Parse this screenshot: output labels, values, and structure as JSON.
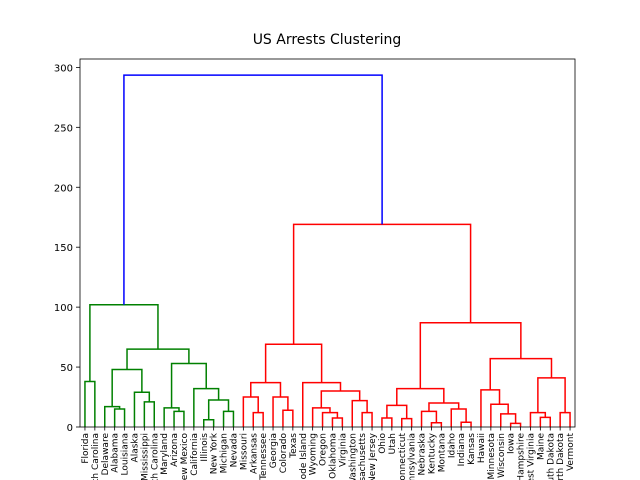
{
  "chart_data": {
    "type": "dendrogram",
    "title": "US Arrests Clustering",
    "leaves": [
      "Florida",
      "North Carolina",
      "Delaware",
      "Alabama",
      "Louisiana",
      "Alaska",
      "Mississippi",
      "South Carolina",
      "Maryland",
      "Arizona",
      "New Mexico",
      "California",
      "Illinois",
      "New York",
      "Michigan",
      "Nevada",
      "Missouri",
      "Arkansas",
      "Tennessee",
      "Georgia",
      "Colorado",
      "Texas",
      "Rhode Island",
      "Wyoming",
      "Oregon",
      "Oklahoma",
      "Virginia",
      "Washington",
      "Massachusetts",
      "New Jersey",
      "Ohio",
      "Utah",
      "Connecticut",
      "Pennsylvania",
      "Nebraska",
      "Kentucky",
      "Montana",
      "Idaho",
      "Indiana",
      "Kansas",
      "Hawaii",
      "Minnesota",
      "Wisconsin",
      "Iowa",
      "New Hampshire",
      "West Virginia",
      "Maine",
      "South Dakota",
      "North Dakota",
      "Vermont"
    ],
    "xlim": [
      0,
      500
    ],
    "ylim": [
      0,
      307
    ],
    "yticks": [
      0,
      50,
      100,
      150,
      200,
      250,
      300
    ],
    "links": [
      {
        "icoord": [
          5,
          5,
          15,
          15
        ],
        "dcoord": [
          0,
          38,
          38,
          0
        ],
        "color": "#008000"
      },
      {
        "icoord": [
          35,
          35,
          45,
          45
        ],
        "dcoord": [
          0,
          15,
          15,
          0
        ],
        "color": "#008000"
      },
      {
        "icoord": [
          25,
          25,
          40,
          40
        ],
        "dcoord": [
          0,
          17,
          17,
          15
        ],
        "color": "#008000"
      },
      {
        "icoord": [
          65,
          65,
          75,
          75
        ],
        "dcoord": [
          0,
          21,
          21,
          0
        ],
        "color": "#008000"
      },
      {
        "icoord": [
          55,
          55,
          70,
          70
        ],
        "dcoord": [
          0,
          29,
          29,
          21
        ],
        "color": "#008000"
      },
      {
        "icoord": [
          32.5,
          32.5,
          62.5,
          62.5
        ],
        "dcoord": [
          17,
          48,
          48,
          29
        ],
        "color": "#008000"
      },
      {
        "icoord": [
          95,
          95,
          105,
          105
        ],
        "dcoord": [
          0,
          13,
          13,
          0
        ],
        "color": "#008000"
      },
      {
        "icoord": [
          85,
          85,
          100,
          100
        ],
        "dcoord": [
          0,
          16,
          16,
          13
        ],
        "color": "#008000"
      },
      {
        "icoord": [
          125,
          125,
          135,
          135
        ],
        "dcoord": [
          0,
          6,
          6,
          0
        ],
        "color": "#008000"
      },
      {
        "icoord": [
          145,
          145,
          155,
          155
        ],
        "dcoord": [
          0,
          13,
          13,
          0
        ],
        "color": "#008000"
      },
      {
        "icoord": [
          130,
          130,
          150,
          150
        ],
        "dcoord": [
          6,
          22.5,
          22.5,
          13
        ],
        "color": "#008000"
      },
      {
        "icoord": [
          115,
          115,
          140,
          140
        ],
        "dcoord": [
          0,
          32,
          32,
          22.5
        ],
        "color": "#008000"
      },
      {
        "icoord": [
          92.5,
          92.5,
          127.5,
          127.5
        ],
        "dcoord": [
          16,
          53,
          53,
          32
        ],
        "color": "#008000"
      },
      {
        "icoord": [
          47.5,
          47.5,
          110,
          110
        ],
        "dcoord": [
          48,
          65,
          65,
          53
        ],
        "color": "#008000"
      },
      {
        "icoord": [
          10,
          10,
          78.75,
          78.75
        ],
        "dcoord": [
          38,
          102,
          102,
          65
        ],
        "color": "#008000"
      },
      {
        "icoord": [
          175,
          175,
          185,
          185
        ],
        "dcoord": [
          0,
          12,
          12,
          0
        ],
        "color": "#ff0000"
      },
      {
        "icoord": [
          165,
          165,
          180,
          180
        ],
        "dcoord": [
          0,
          25,
          25,
          12
        ],
        "color": "#ff0000"
      },
      {
        "icoord": [
          205,
          205,
          215,
          215
        ],
        "dcoord": [
          0,
          14,
          14,
          0
        ],
        "color": "#ff0000"
      },
      {
        "icoord": [
          195,
          195,
          210,
          210
        ],
        "dcoord": [
          0,
          25,
          25,
          14
        ],
        "color": "#ff0000"
      },
      {
        "icoord": [
          172.5,
          172.5,
          202.5,
          202.5
        ],
        "dcoord": [
          25,
          37,
          37,
          25
        ],
        "color": "#ff0000"
      },
      {
        "icoord": [
          255,
          255,
          265,
          265
        ],
        "dcoord": [
          0,
          7.5,
          7.5,
          0
        ],
        "color": "#ff0000"
      },
      {
        "icoord": [
          245,
          245,
          260,
          260
        ],
        "dcoord": [
          0,
          12,
          12,
          7.5
        ],
        "color": "#ff0000"
      },
      {
        "icoord": [
          235,
          235,
          252.5,
          252.5
        ],
        "dcoord": [
          0,
          16,
          16,
          12
        ],
        "color": "#ff0000"
      },
      {
        "icoord": [
          285,
          285,
          295,
          295
        ],
        "dcoord": [
          0,
          12,
          12,
          0
        ],
        "color": "#ff0000"
      },
      {
        "icoord": [
          275,
          275,
          290,
          290
        ],
        "dcoord": [
          0,
          22,
          22,
          12
        ],
        "color": "#ff0000"
      },
      {
        "icoord": [
          243.75,
          243.75,
          282.5,
          282.5
        ],
        "dcoord": [
          16,
          30,
          30,
          22
        ],
        "color": "#ff0000"
      },
      {
        "icoord": [
          225,
          225,
          263.125,
          263.125
        ],
        "dcoord": [
          0,
          37,
          37,
          30
        ],
        "color": "#ff0000"
      },
      {
        "icoord": [
          187.5,
          187.5,
          244.0625,
          244.0625
        ],
        "dcoord": [
          37,
          69,
          69,
          37
        ],
        "color": "#ff0000"
      },
      {
        "icoord": [
          305,
          305,
          315,
          315
        ],
        "dcoord": [
          0,
          7.5,
          7.5,
          0
        ],
        "color": "#ff0000"
      },
      {
        "icoord": [
          325,
          325,
          335,
          335
        ],
        "dcoord": [
          0,
          7,
          7,
          0
        ],
        "color": "#ff0000"
      },
      {
        "icoord": [
          310,
          310,
          330,
          330
        ],
        "dcoord": [
          7.5,
          18,
          18,
          7
        ],
        "color": "#ff0000"
      },
      {
        "icoord": [
          355,
          355,
          365,
          365
        ],
        "dcoord": [
          0,
          3.5,
          3.5,
          0
        ],
        "color": "#ff0000"
      },
      {
        "icoord": [
          345,
          345,
          360,
          360
        ],
        "dcoord": [
          0,
          13,
          13,
          3.5
        ],
        "color": "#ff0000"
      },
      {
        "icoord": [
          385,
          385,
          395,
          395
        ],
        "dcoord": [
          0,
          4,
          4,
          0
        ],
        "color": "#ff0000"
      },
      {
        "icoord": [
          375,
          375,
          390,
          390
        ],
        "dcoord": [
          0,
          15,
          15,
          4
        ],
        "color": "#ff0000"
      },
      {
        "icoord": [
          352.5,
          352.5,
          382.5,
          382.5
        ],
        "dcoord": [
          13,
          20,
          20,
          15
        ],
        "color": "#ff0000"
      },
      {
        "icoord": [
          320,
          320,
          367.5,
          367.5
        ],
        "dcoord": [
          18,
          32,
          32,
          20
        ],
        "color": "#ff0000"
      },
      {
        "icoord": [
          435,
          435,
          445,
          445
        ],
        "dcoord": [
          0,
          3,
          3,
          0
        ],
        "color": "#ff0000"
      },
      {
        "icoord": [
          425,
          425,
          440,
          440
        ],
        "dcoord": [
          0,
          11,
          11,
          3
        ],
        "color": "#ff0000"
      },
      {
        "icoord": [
          415,
          415,
          432.5,
          432.5
        ],
        "dcoord": [
          0,
          19,
          19,
          11
        ],
        "color": "#ff0000"
      },
      {
        "icoord": [
          405,
          405,
          423.75,
          423.75
        ],
        "dcoord": [
          0,
          31,
          31,
          19
        ],
        "color": "#ff0000"
      },
      {
        "icoord": [
          465,
          465,
          475,
          475
        ],
        "dcoord": [
          0,
          8,
          8,
          0
        ],
        "color": "#ff0000"
      },
      {
        "icoord": [
          455,
          455,
          470,
          470
        ],
        "dcoord": [
          0,
          12,
          12,
          8
        ],
        "color": "#ff0000"
      },
      {
        "icoord": [
          485,
          485,
          495,
          495
        ],
        "dcoord": [
          0,
          12,
          12,
          0
        ],
        "color": "#ff0000"
      },
      {
        "icoord": [
          462.5,
          462.5,
          490,
          490
        ],
        "dcoord": [
          12,
          41,
          41,
          12
        ],
        "color": "#ff0000"
      },
      {
        "icoord": [
          414.375,
          414.375,
          476.25,
          476.25
        ],
        "dcoord": [
          31,
          57,
          57,
          41
        ],
        "color": "#ff0000"
      },
      {
        "icoord": [
          343.75,
          343.75,
          445.3125,
          445.3125
        ],
        "dcoord": [
          32,
          87,
          87,
          57
        ],
        "color": "#ff0000"
      },
      {
        "icoord": [
          215.78125,
          215.78125,
          394.53125,
          394.53125
        ],
        "dcoord": [
          69,
          169,
          169,
          87
        ],
        "color": "#ff0000"
      },
      {
        "icoord": [
          44.375,
          44.375,
          305.15625,
          305.15625
        ],
        "dcoord": [
          102,
          293.6,
          293.6,
          169
        ],
        "color": "#0000ff"
      }
    ]
  }
}
